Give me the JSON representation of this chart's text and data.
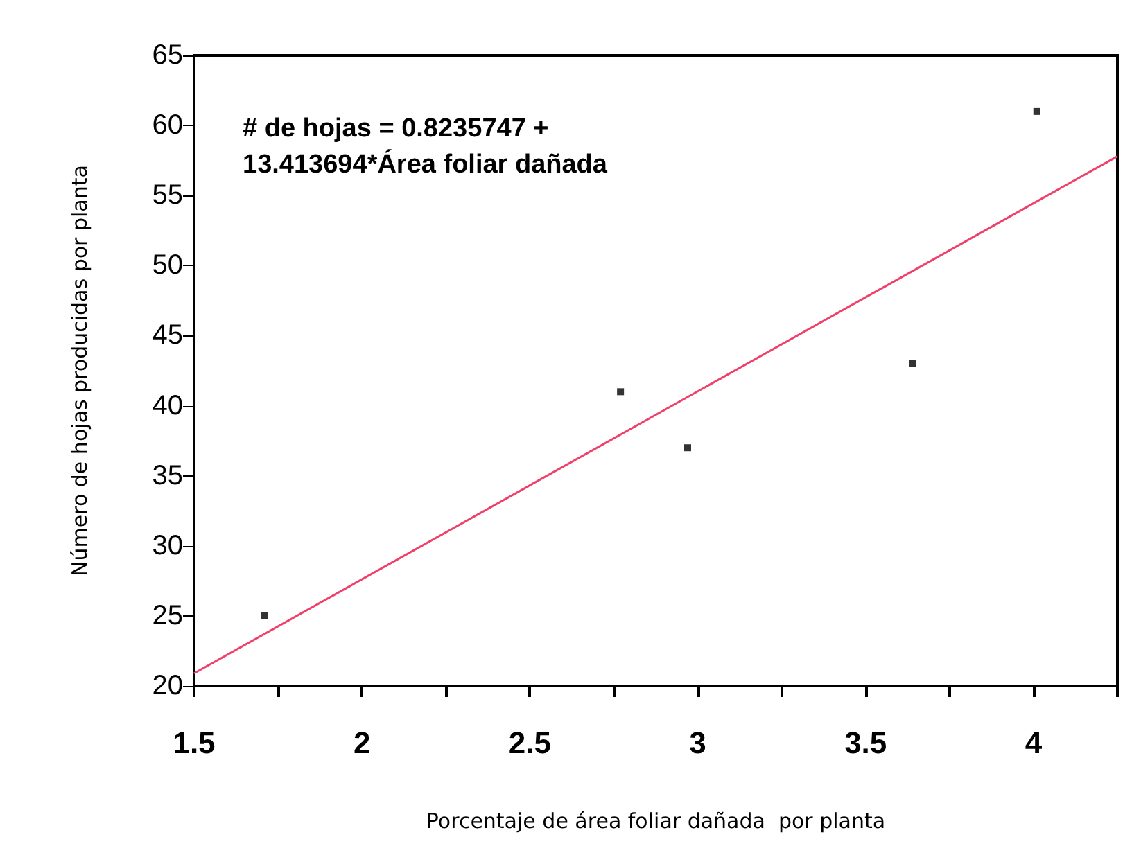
{
  "chart_data": {
    "type": "scatter",
    "xlabel": "Porcentaje de área foliar dañada  por planta",
    "ylabel": "Número de hojas producidas por planta",
    "annotations": [
      "# de hojas = 0.8235747 +\n13.413694*Área foliar dañada"
    ],
    "x": [
      1.71,
      2.77,
      2.97,
      3.64,
      4.01
    ],
    "series": [
      {
        "color": "#000000",
        "marker": "square",
        "values": [
          25,
          41,
          37,
          43,
          61
        ]
      },
      {
        "type": "line",
        "color": "#f0406a",
        "marker": "none",
        "x": [
          1.5,
          4.25
        ],
        "values": [
          20.9,
          57.8
        ]
      }
    ],
    "xlim": [
      1.5,
      4.25
    ],
    "xticks": [
      1.5,
      {
        "value": 1.75,
        "label": null
      },
      2,
      {
        "value": 2.25,
        "label": null
      },
      2.5,
      {
        "value": 2.75,
        "label": null
      },
      3,
      {
        "value": 3.25,
        "label": null
      },
      3.5,
      {
        "value": 3.75,
        "label": null
      },
      4,
      {
        "value": 4.25,
        "label": null
      }
    ],
    "ylim": [
      20,
      65
    ],
    "yticks": [
      20,
      25,
      30,
      35,
      40,
      45,
      50,
      55,
      60,
      65
    ],
    "grid": false
  }
}
